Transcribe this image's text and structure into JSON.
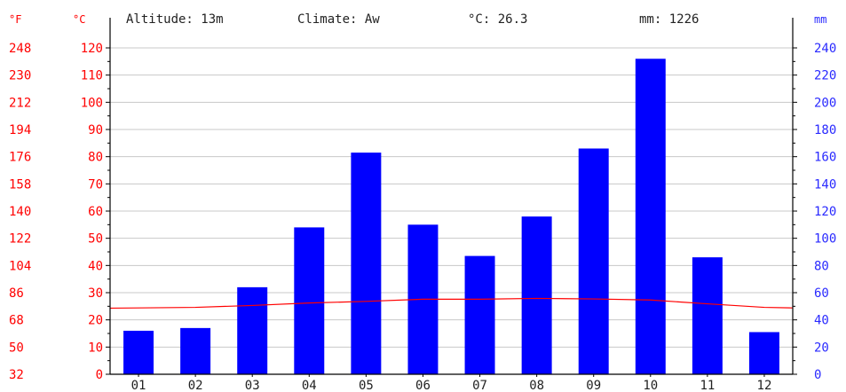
{
  "header": {
    "altitude": "Altitude: 13m",
    "climate": "Climate: Aw",
    "mean_temp": "°C: 26.3",
    "annual_precip": "mm: 1226"
  },
  "units": {
    "fahrenheit": "°F",
    "celsius": "°C",
    "mm": "mm"
  },
  "colors": {
    "precip_bar": "#0000ff",
    "temp_line": "#ff0000",
    "fahrenheit_axis": "#ff0000",
    "celsius_axis": "#ff0000",
    "mm_axis": "#2a2aff",
    "grid": "#c8c8c8"
  },
  "chart_data": {
    "type": "bar",
    "categories": [
      "01",
      "02",
      "03",
      "04",
      "05",
      "06",
      "07",
      "08",
      "09",
      "10",
      "11",
      "12"
    ],
    "series": [
      {
        "name": "mm",
        "type": "bar",
        "axis": "mm",
        "values": [
          32,
          34,
          64,
          108,
          163,
          110,
          87,
          116,
          166,
          232,
          86,
          31
        ]
      },
      {
        "name": "°C",
        "type": "line",
        "axis": "celsius",
        "values": [
          24.4,
          24.6,
          25.3,
          26.2,
          26.8,
          27.6,
          27.6,
          27.9,
          27.7,
          27.3,
          25.9,
          24.6
        ]
      }
    ],
    "celsius_ticks": [
      "0",
      "10",
      "20",
      "30",
      "40",
      "50",
      "60",
      "70",
      "80",
      "90",
      "100",
      "110",
      "120"
    ],
    "fahrenheit_ticks": [
      "32",
      "50",
      "68",
      "86",
      "104",
      "122",
      "140",
      "158",
      "176",
      "194",
      "212",
      "230",
      "248"
    ],
    "mm_ticks": [
      "0",
      "20",
      "40",
      "60",
      "80",
      "100",
      "120",
      "140",
      "160",
      "180",
      "200",
      "220",
      "240"
    ],
    "celsius_range": [
      0,
      120
    ],
    "mm_range": [
      0,
      240
    ],
    "grid": true
  }
}
